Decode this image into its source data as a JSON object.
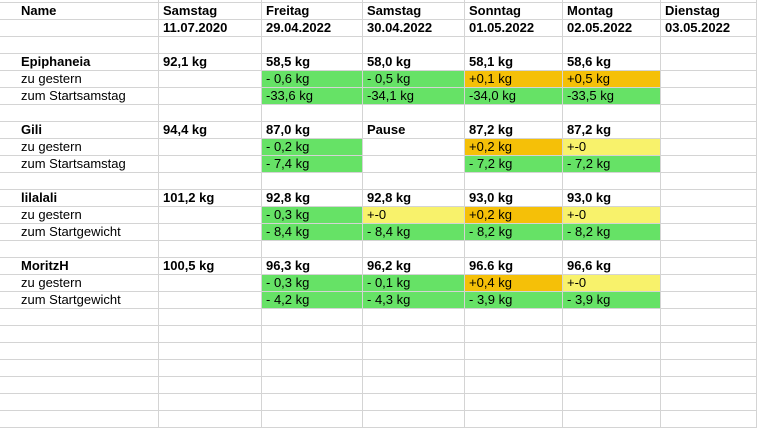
{
  "header": {
    "name": "Name",
    "days": [
      "Samstag",
      "Freitag",
      "Samstag",
      "Sonntag",
      "Montag",
      "Dienstag"
    ],
    "dates": [
      "11.07.2020",
      "29.04.2022",
      "30.04.2022",
      "01.05.2022",
      "02.05.2022",
      "03.05.2022"
    ]
  },
  "colors": {
    "green": "#66e266",
    "orange": "#f5c008",
    "yellow": "#f8f26b"
  },
  "people": [
    {
      "name": "Epiphaneia",
      "values": [
        "92,1 kg",
        "58,5 kg",
        "58,0 kg",
        "58,1 kg",
        "58,6 kg",
        ""
      ],
      "rows": [
        {
          "label": "zu gestern",
          "values": [
            "",
            "- 0,6 kg",
            "- 0,5 kg",
            "+0,1 kg",
            "+0,5 kg",
            ""
          ],
          "colors": [
            "",
            "green",
            "green",
            "orange",
            "orange",
            ""
          ]
        },
        {
          "label": "zum Startsamstag",
          "values": [
            "",
            "-33,6 kg",
            "-34,1 kg",
            "-34,0 kg",
            "-33,5 kg",
            ""
          ],
          "colors": [
            "",
            "green",
            "green",
            "green",
            "green",
            ""
          ]
        }
      ]
    },
    {
      "name": "Gili",
      "values": [
        "94,4 kg",
        "87,0 kg",
        "Pause",
        "87,2 kg",
        "87,2 kg",
        ""
      ],
      "rows": [
        {
          "label": "zu gestern",
          "values": [
            "",
            "- 0,2 kg",
            "",
            "+0,2 kg",
            "+-0",
            ""
          ],
          "colors": [
            "",
            "green",
            "",
            "orange",
            "yellow",
            ""
          ]
        },
        {
          "label": "zum Startsamstag",
          "values": [
            "",
            "- 7,4 kg",
            "",
            "- 7,2 kg",
            "- 7,2 kg",
            ""
          ],
          "colors": [
            "",
            "green",
            "",
            "green",
            "green",
            ""
          ]
        }
      ]
    },
    {
      "name": "lilalali",
      "values": [
        "101,2 kg",
        "92,8 kg",
        "92,8 kg",
        "93,0 kg",
        "93,0 kg",
        ""
      ],
      "rows": [
        {
          "label": "zu gestern",
          "values": [
            "",
            "- 0,3 kg",
            "+-0",
            "+0,2 kg",
            "+-0",
            ""
          ],
          "colors": [
            "",
            "green",
            "yellow",
            "orange",
            "yellow",
            ""
          ]
        },
        {
          "label": "zum Startgewicht",
          "values": [
            "",
            "- 8,4 kg",
            "- 8,4 kg",
            "- 8,2 kg",
            "- 8,2 kg",
            ""
          ],
          "colors": [
            "",
            "green",
            "green",
            "green",
            "green",
            ""
          ]
        }
      ]
    },
    {
      "name": "MoritzH",
      "values": [
        "100,5 kg",
        "96,3 kg",
        "96,2 kg",
        "96.6 kg",
        "96,6 kg",
        ""
      ],
      "rows": [
        {
          "label": "zu gestern",
          "values": [
            "",
            "- 0,3 kg",
            "- 0,1 kg",
            "+0,4 kg",
            "+-0",
            ""
          ],
          "colors": [
            "",
            "green",
            "green",
            "orange",
            "yellow",
            ""
          ]
        },
        {
          "label": "zum Startgewicht",
          "values": [
            "",
            "- 4,2 kg",
            "- 4,3 kg",
            "- 3,9 kg",
            "- 3,9 kg",
            ""
          ],
          "colors": [
            "",
            "green",
            "green",
            "green",
            "green",
            ""
          ]
        }
      ]
    }
  ]
}
